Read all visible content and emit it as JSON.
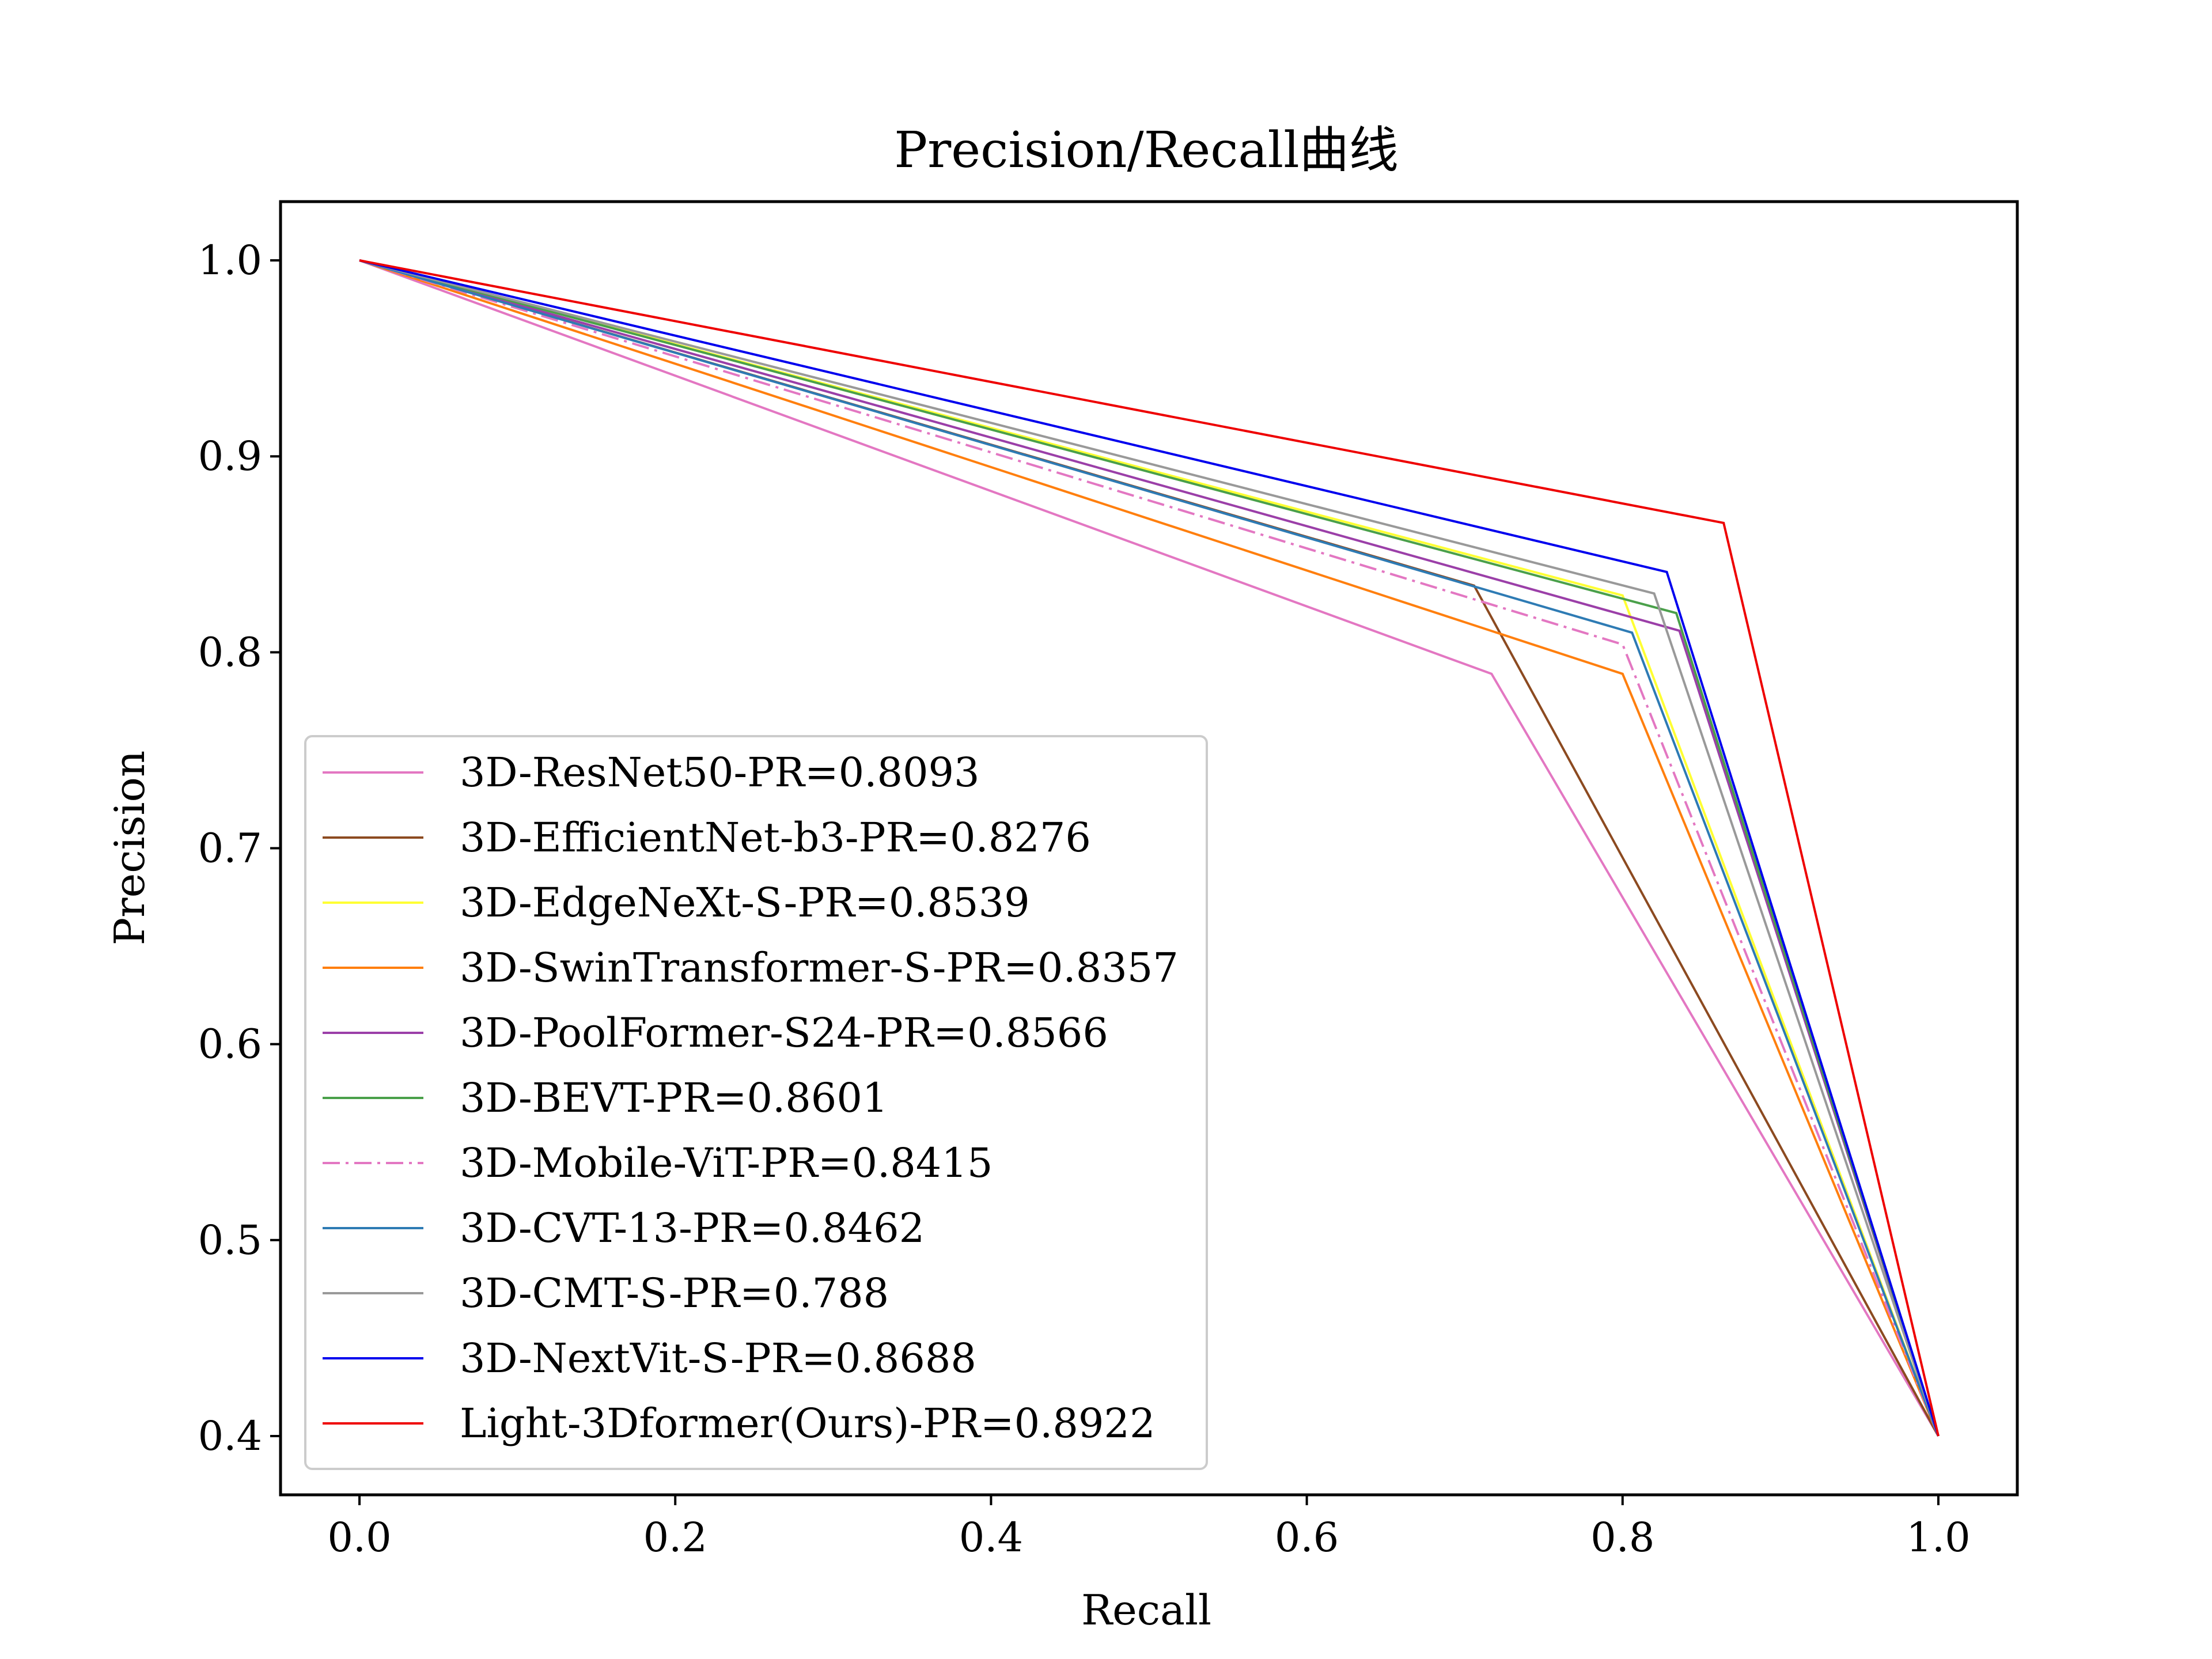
{
  "chart_data": {
    "type": "line",
    "title": "Precision/Recall曲线",
    "xlabel": "Recall",
    "ylabel": "Precision",
    "xlim": [
      -0.05,
      1.05
    ],
    "ylim": [
      0.37,
      1.03
    ],
    "xticks": [
      0.0,
      0.2,
      0.4,
      0.6,
      0.8,
      1.0
    ],
    "xtick_labels": [
      "0.0",
      "0.2",
      "0.4",
      "0.6",
      "0.8",
      "1.0"
    ],
    "yticks": [
      0.4,
      0.5,
      0.6,
      0.7,
      0.8,
      0.9,
      1.0
    ],
    "ytick_labels": [
      "0.4",
      "0.5",
      "0.6",
      "0.7",
      "0.8",
      "0.9",
      "1.0"
    ],
    "grid": false,
    "legend_position": "lower-left",
    "series": [
      {
        "name": "3D-ResNet50-PR=0.8093",
        "color": "#e377c2",
        "dash": "solid",
        "x": [
          0,
          0.717,
          1.0
        ],
        "y": [
          1.0,
          0.789,
          0.4
        ]
      },
      {
        "name": "3D-EfficientNet-b3-PR=0.8276",
        "color": "#8c4a20",
        "dash": "solid",
        "x": [
          0,
          0.706,
          1.0
        ],
        "y": [
          1.0,
          0.834,
          0.4
        ]
      },
      {
        "name": "3D-EdgeNeXt-S-PR=0.8539",
        "color": "#ffff33",
        "dash": "solid",
        "x": [
          0,
          0.8,
          1.0
        ],
        "y": [
          1.0,
          0.829,
          0.4
        ]
      },
      {
        "name": "3D-SwinTransformer-S-PR=0.8357",
        "color": "#ff7f0e",
        "dash": "solid",
        "x": [
          0,
          0.8,
          1.0
        ],
        "y": [
          1.0,
          0.789,
          0.4
        ]
      },
      {
        "name": "3D-PoolFormer-S24-PR=0.8566",
        "color": "#9b3fa8",
        "dash": "solid",
        "x": [
          0,
          0.836,
          1.0
        ],
        "y": [
          1.0,
          0.811,
          0.4
        ]
      },
      {
        "name": "3D-BEVT-PR=0.8601",
        "color": "#4aa04a",
        "dash": "solid",
        "x": [
          0,
          0.834,
          1.0
        ],
        "y": [
          1.0,
          0.82,
          0.4
        ]
      },
      {
        "name": "3D-Mobile-ViT-PR=0.8415",
        "color": "#e377c2",
        "dash": "dashdot",
        "x": [
          0,
          0.8,
          1.0
        ],
        "y": [
          1.0,
          0.804,
          0.4
        ]
      },
      {
        "name": "3D-CVT-13-PR=0.8462",
        "color": "#2e7bb4",
        "dash": "solid",
        "x": [
          0,
          0.806,
          1.0
        ],
        "y": [
          1.0,
          0.81,
          0.4
        ]
      },
      {
        "name": "3D-CMT-S-PR=0.788",
        "color": "#999999",
        "dash": "solid",
        "x": [
          0,
          0.82,
          1.0
        ],
        "y": [
          1.0,
          0.83,
          0.4
        ]
      },
      {
        "name": "3D-NextVit-S-PR=0.8688",
        "color": "#0000ee",
        "dash": "solid",
        "x": [
          0,
          0.828,
          1.0
        ],
        "y": [
          1.0,
          0.841,
          0.4
        ]
      },
      {
        "name": "Light-3Dformer(Ours)-PR=0.8922",
        "color": "#ee0000",
        "dash": "solid",
        "x": [
          0,
          0.864,
          1.0
        ],
        "y": [
          1.0,
          0.866,
          0.4
        ]
      }
    ]
  }
}
